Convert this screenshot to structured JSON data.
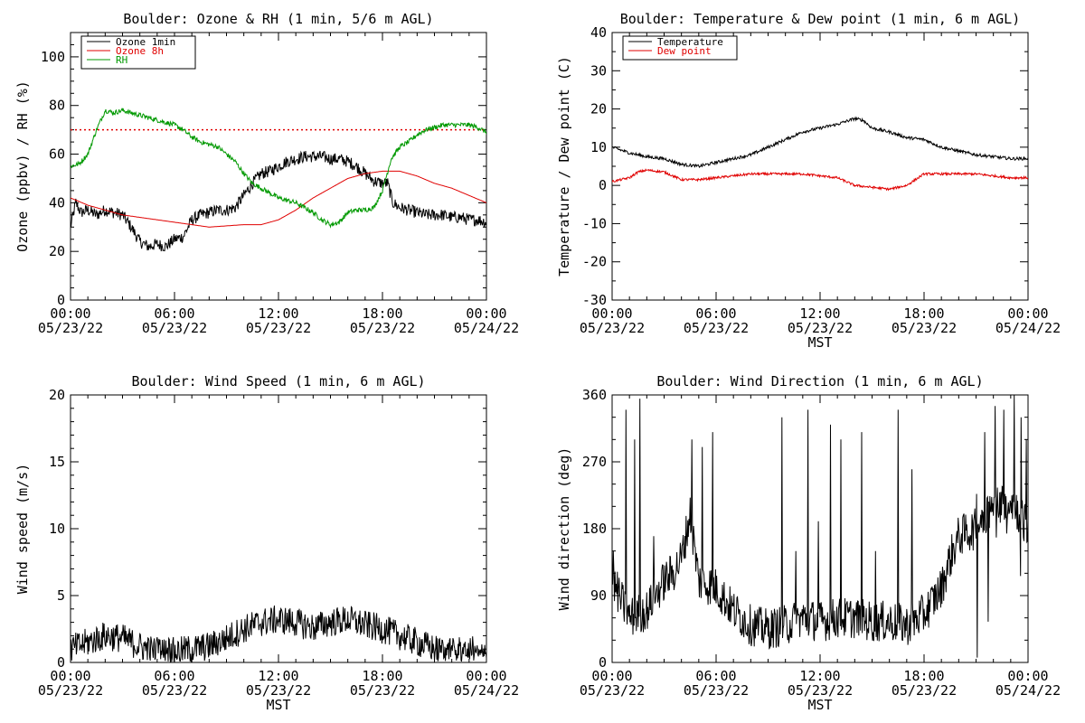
{
  "chart_data": [
    {
      "type": "line",
      "title": "Boulder: Ozone & RH (1 min, 5/6 m AGL)",
      "ylabel": "Ozone (ppbv) / RH (%)",
      "xlabel": "",
      "ylim": [
        0,
        110
      ],
      "yticks": [
        0,
        20,
        40,
        60,
        80,
        100
      ],
      "xlim": [
        0,
        24
      ],
      "xticks": [
        0,
        6,
        12,
        18,
        24
      ],
      "xticklabels": [
        [
          "00:00",
          "05/23/22"
        ],
        [
          "06:00",
          "05/23/22"
        ],
        [
          "12:00",
          "05/23/22"
        ],
        [
          "18:00",
          "05/23/22"
        ],
        [
          "00:00",
          "05/24/22"
        ]
      ],
      "reference_line": {
        "y": 70,
        "color": "#e00000",
        "style": "dotted"
      },
      "legend_position": "top-left",
      "series": [
        {
          "name": "Ozone 1min",
          "color": "#000000",
          "noise": 2.5,
          "x": [
            0,
            0.3,
            0.6,
            1,
            1.5,
            2,
            2.5,
            3,
            3.5,
            4,
            4.5,
            5,
            5.5,
            6,
            6.5,
            7,
            7.5,
            8,
            8.5,
            9,
            9.5,
            10,
            10.5,
            11,
            11.5,
            12,
            12.5,
            13,
            13.5,
            14,
            14.5,
            15,
            15.5,
            16,
            16.5,
            17,
            17.5,
            18,
            18.3,
            18.6,
            19,
            19.5,
            20,
            20.5,
            21,
            21.5,
            22,
            22.5,
            23,
            23.5,
            24
          ],
          "y": [
            30,
            40,
            36,
            37,
            35,
            37,
            36,
            35,
            30,
            24,
            22,
            23,
            22,
            25,
            26,
            33,
            35,
            36,
            37,
            37,
            38,
            43,
            48,
            52,
            53,
            55,
            57,
            58,
            59,
            59,
            59,
            58,
            58,
            57,
            55,
            52,
            49,
            48,
            48,
            40,
            38,
            37,
            36,
            35,
            35,
            35,
            34,
            34,
            33,
            33,
            32
          ]
        },
        {
          "name": "Ozone 8h",
          "color": "#e00000",
          "noise": 0,
          "x": [
            0,
            1,
            2,
            3,
            4,
            5,
            6,
            7,
            8,
            9,
            10,
            11,
            12,
            13,
            14,
            15,
            16,
            17,
            18,
            19,
            20,
            21,
            22,
            23,
            24
          ],
          "y": [
            42,
            39,
            37,
            35,
            34,
            33,
            32,
            31,
            30,
            30.5,
            31,
            31,
            33,
            37,
            42,
            46,
            50,
            52,
            53,
            53,
            51,
            48,
            46,
            43,
            40
          ]
        },
        {
          "name": "RH",
          "color": "#009900",
          "noise": 1,
          "x": [
            0,
            0.5,
            1,
            1.5,
            2,
            2.5,
            3,
            3.5,
            4,
            4.5,
            5,
            5.5,
            6,
            6.5,
            7,
            7.5,
            8,
            8.5,
            9,
            9.5,
            10,
            10.5,
            11,
            11.5,
            12,
            12.5,
            13,
            13.5,
            14,
            14.5,
            15,
            15.5,
            16,
            16.5,
            17,
            17.5,
            18,
            18.5,
            19,
            19.5,
            20,
            20.5,
            21,
            21.5,
            22,
            22.5,
            23,
            23.5,
            24
          ],
          "y": [
            55,
            56,
            60,
            70,
            78,
            77,
            78,
            77,
            76,
            75,
            74,
            73,
            72,
            70,
            67,
            65,
            64,
            63,
            60,
            57,
            52,
            48,
            46,
            44,
            42,
            41,
            40,
            38,
            36,
            33,
            31,
            32,
            36,
            37,
            37,
            38,
            45,
            58,
            63,
            65,
            68,
            70,
            71,
            72,
            72,
            72,
            72,
            71,
            69
          ]
        }
      ]
    },
    {
      "type": "line",
      "title": "Boulder: Temperature & Dew point (1 min, 6 m AGL)",
      "ylabel": "Temperature / Dew point (C)",
      "xlabel": "MST",
      "ylim": [
        -30,
        40
      ],
      "yticks": [
        -30,
        -20,
        -10,
        0,
        10,
        20,
        30,
        40
      ],
      "xlim": [
        0,
        24
      ],
      "xticks": [
        0,
        6,
        12,
        18,
        24
      ],
      "xticklabels": [
        [
          "00:00",
          "05/23/22"
        ],
        [
          "06:00",
          "05/23/22"
        ],
        [
          "12:00",
          "05/23/22"
        ],
        [
          "18:00",
          "05/23/22"
        ],
        [
          "00:00",
          "05/24/22"
        ]
      ],
      "legend_position": "top-left",
      "series": [
        {
          "name": "Temperature",
          "color": "#000000",
          "noise": 0.4,
          "x": [
            0,
            1,
            2,
            3,
            4,
            5,
            6,
            7,
            8,
            9,
            10,
            11,
            12,
            13,
            14,
            14.5,
            15,
            16,
            17,
            18,
            19,
            20,
            21,
            22,
            23,
            24
          ],
          "y": [
            10,
            8.5,
            7.5,
            7,
            5.5,
            5,
            6,
            7,
            8,
            10,
            12,
            14,
            15,
            16,
            17.5,
            17,
            15,
            14,
            12.5,
            12,
            10,
            9,
            8,
            7.5,
            7,
            7
          ]
        },
        {
          "name": "Dew point",
          "color": "#e00000",
          "noise": 0.3,
          "x": [
            0,
            1,
            1.5,
            2,
            3,
            4,
            5,
            6,
            7,
            8,
            9,
            10,
            11,
            12,
            13,
            14,
            15,
            16,
            17,
            18,
            19,
            20,
            21,
            22,
            23,
            24
          ],
          "y": [
            1,
            2,
            3.5,
            4,
            3.5,
            1.5,
            1.5,
            2,
            2.5,
            3,
            3,
            3,
            3,
            2.5,
            2,
            0,
            -0.5,
            -1,
            0,
            3,
            3,
            3,
            3,
            2.5,
            2,
            2
          ]
        }
      ]
    },
    {
      "type": "line",
      "title": "Boulder: Wind Speed (1 min, 6 m AGL)",
      "ylabel": "Wind speed (m/s)",
      "xlabel": "MST",
      "ylim": [
        0,
        20
      ],
      "yticks": [
        0,
        5,
        10,
        15,
        20
      ],
      "xlim": [
        0,
        24
      ],
      "xticks": [
        0,
        6,
        12,
        18,
        24
      ],
      "xticklabels": [
        [
          "00:00",
          "05/23/22"
        ],
        [
          "06:00",
          "05/23/22"
        ],
        [
          "12:00",
          "05/23/22"
        ],
        [
          "18:00",
          "05/23/22"
        ],
        [
          "00:00",
          "05/24/22"
        ]
      ],
      "series": [
        {
          "name": "",
          "color": "#000000",
          "noise": 1.1,
          "min": 0,
          "x": [
            0,
            1,
            2,
            3,
            4,
            5,
            6,
            7,
            8,
            9,
            10,
            11,
            12,
            13,
            14,
            15,
            16,
            17,
            18,
            19,
            20,
            21,
            22,
            23,
            24
          ],
          "y": [
            1,
            1.5,
            2,
            1.8,
            1.2,
            0.8,
            0.8,
            1,
            1.2,
            1.8,
            2.5,
            3,
            3.2,
            3,
            2.6,
            3,
            3.2,
            2.8,
            2.5,
            2,
            1.5,
            1,
            0.6,
            0.4,
            0.5
          ]
        }
      ]
    },
    {
      "type": "line",
      "title": "Boulder: Wind Direction (1 min, 6 m AGL)",
      "ylabel": "Wind direction (deg)",
      "xlabel": "MST",
      "ylim": [
        0,
        360
      ],
      "yticks": [
        0,
        90,
        180,
        270,
        360
      ],
      "xlim": [
        0,
        24
      ],
      "xticks": [
        0,
        6,
        12,
        18,
        24
      ],
      "xticklabels": [
        [
          "00:00",
          "05/23/22"
        ],
        [
          "06:00",
          "05/23/22"
        ],
        [
          "12:00",
          "05/23/22"
        ],
        [
          "18:00",
          "05/23/22"
        ],
        [
          "00:00",
          "05/24/22"
        ]
      ],
      "series": [
        {
          "name": "",
          "color": "#000000",
          "noise": 28,
          "min": 0,
          "max": 360,
          "x": [
            0,
            1,
            2,
            3,
            3.5,
            4,
            4.5,
            5,
            6,
            7,
            8,
            9,
            10,
            11,
            12,
            13,
            14,
            15,
            16,
            17,
            18,
            19,
            19.5,
            20,
            21,
            21.5,
            22,
            23,
            24
          ],
          "y": [
            110,
            60,
            70,
            110,
            120,
            140,
            200,
            110,
            100,
            70,
            50,
            45,
            50,
            60,
            55,
            60,
            60,
            55,
            55,
            50,
            65,
            100,
            140,
            170,
            180,
            200,
            210,
            220,
            180
          ],
          "spikes": [
            [
              0.05,
              150
            ],
            [
              0.8,
              340
            ],
            [
              1.3,
              300
            ],
            [
              1.6,
              355
            ],
            [
              2.4,
              170
            ],
            [
              4.6,
              300
            ],
            [
              5.2,
              290
            ],
            [
              5.8,
              310
            ],
            [
              9.8,
              330
            ],
            [
              10.6,
              150
            ],
            [
              11.3,
              340
            ],
            [
              11.9,
              190
            ],
            [
              12.6,
              320
            ],
            [
              13.2,
              300
            ],
            [
              14.4,
              310
            ],
            [
              15.2,
              150
            ],
            [
              16.5,
              340
            ],
            [
              17.3,
              260
            ],
            [
              21.5,
              310
            ],
            [
              22.1,
              345
            ],
            [
              22.6,
              340
            ],
            [
              22.9,
              200
            ],
            [
              23.2,
              360
            ],
            [
              23.6,
              330
            ],
            [
              23.9,
              300
            ]
          ]
        }
      ]
    }
  ]
}
